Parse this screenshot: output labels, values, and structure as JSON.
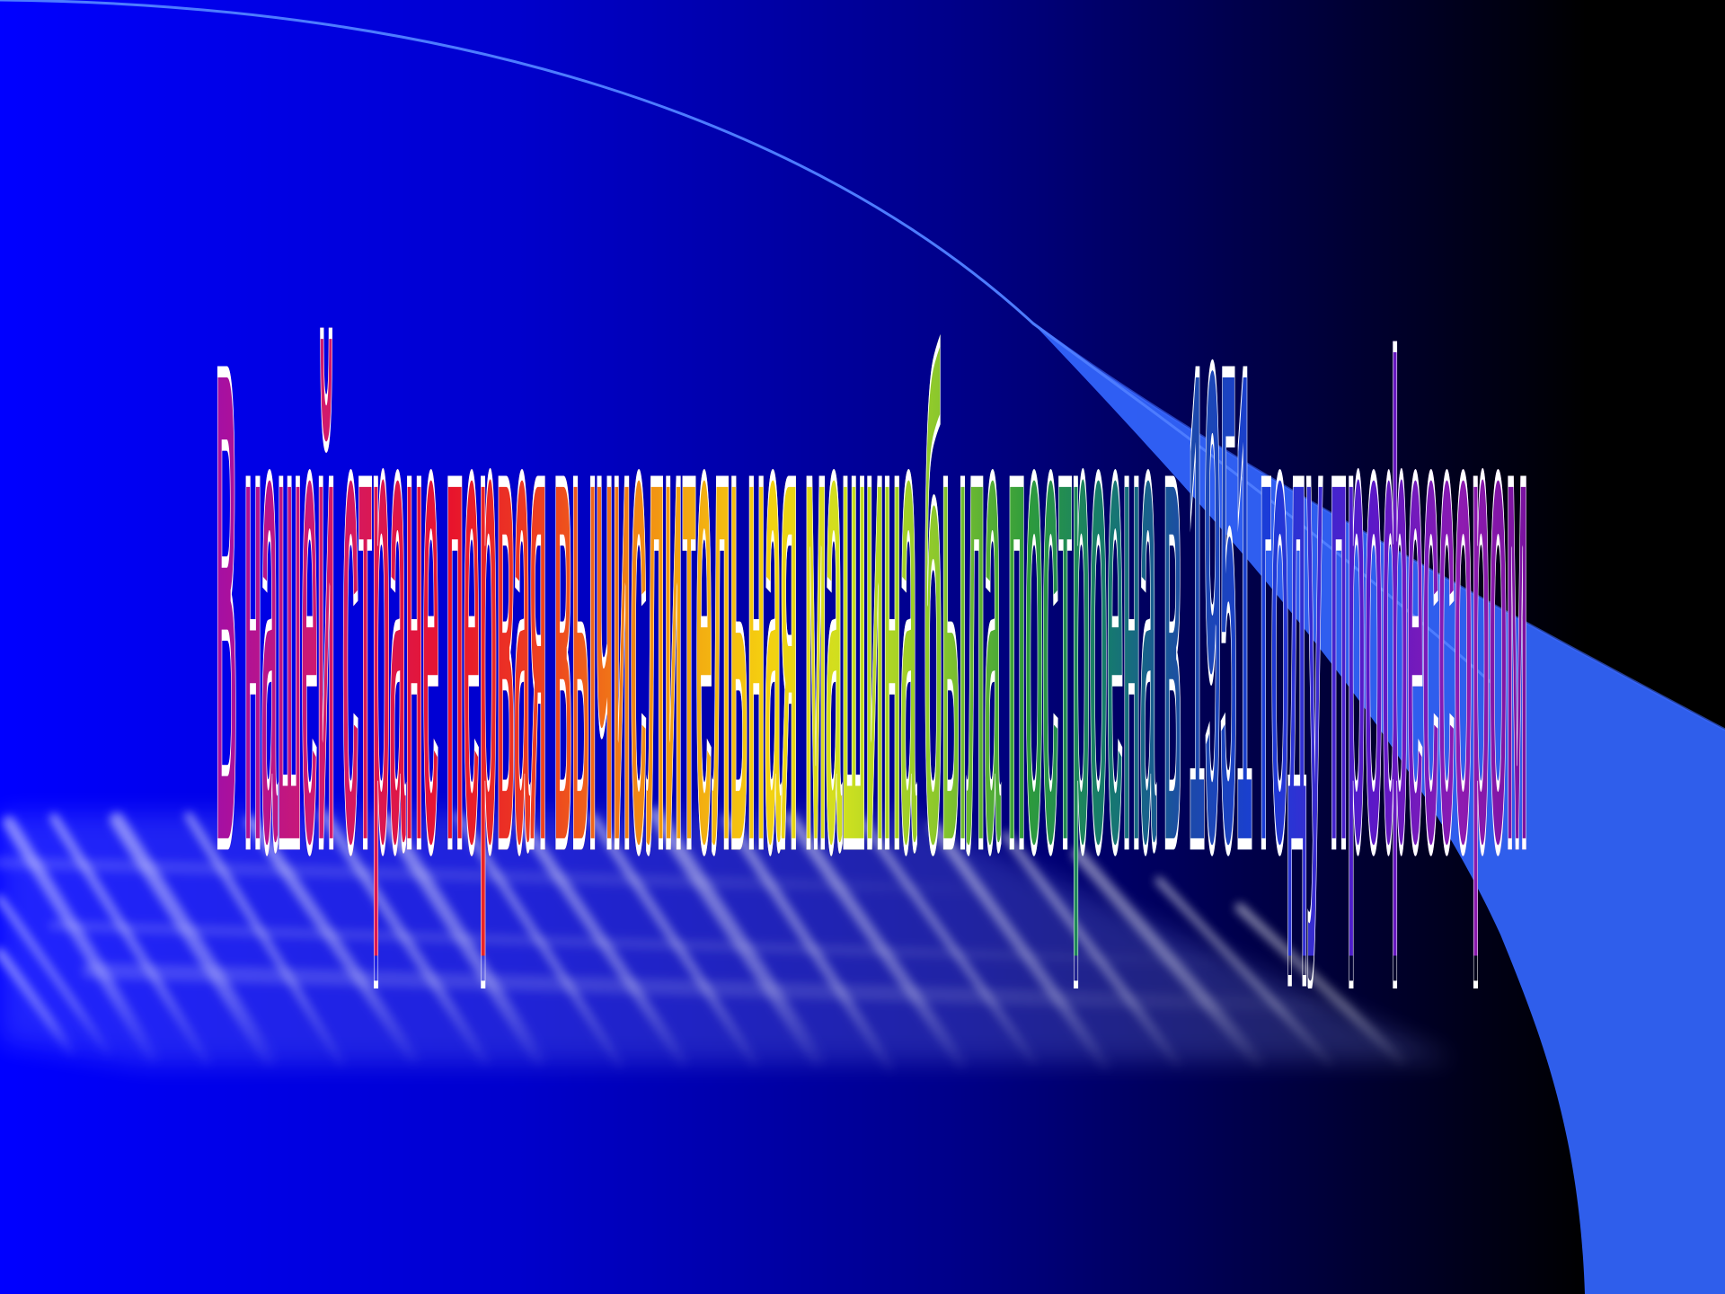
{
  "slide": {
    "headline": "В нашей стране первая вычислительная машина была построена в 1951 году профессором"
  },
  "colors": {
    "background_left": "#0000ff",
    "background_right": "#000000",
    "swoosh": "#3366ff",
    "swoosh_line": "#4d7cff",
    "text_outline": "#ffffff"
  },
  "decor": [
    "gradient-background",
    "curved-swoosh",
    "light-streaks"
  ]
}
